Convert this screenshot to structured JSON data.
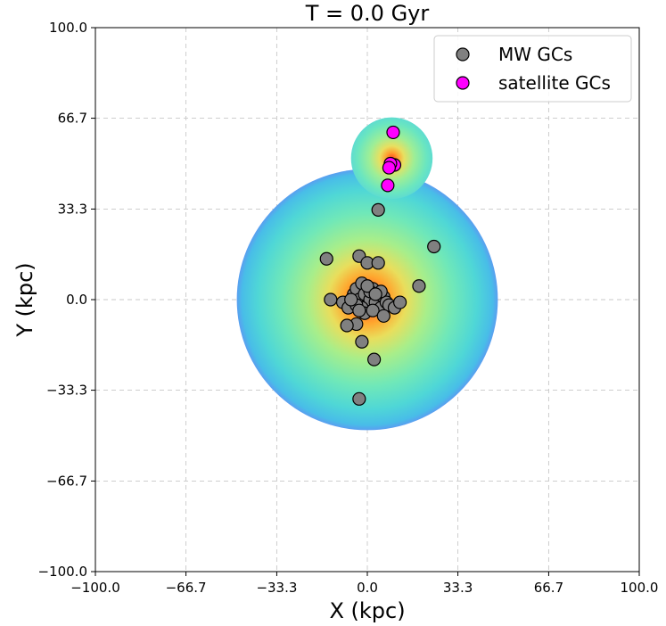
{
  "chart_data": {
    "type": "scatter",
    "title": "T = 0.0 Gyr",
    "xlabel": "X (kpc)",
    "ylabel": "Y (kpc)",
    "xlim": [
      -100,
      100
    ],
    "ylim": [
      -100,
      100
    ],
    "grid": true,
    "xticks": [
      -100,
      -66.7,
      -33.3,
      0,
      33.3,
      66.7,
      100
    ],
    "yticks": [
      -100,
      -66.7,
      -33.3,
      0,
      33.3,
      66.7,
      100
    ],
    "xtick_labels": [
      "−100.0",
      "−66.7",
      "−33.3",
      "0.0",
      "33.3",
      "66.7",
      "100.0"
    ],
    "ytick_labels": [
      "−100.0",
      "−66.7",
      "−33.3",
      "0.0",
      "33.3",
      "66.7",
      "100.0"
    ],
    "legend_position": "top-right",
    "density_halos": [
      {
        "name": "MW halo",
        "center": [
          0,
          0
        ],
        "radius_kpc": 48
      },
      {
        "name": "satellite halo",
        "center": [
          9,
          52
        ],
        "radius_kpc": 15
      }
    ],
    "series": [
      {
        "name": "MW GCs",
        "color": "#808080",
        "points": [
          [
            4,
            33
          ],
          [
            24.5,
            19.5
          ],
          [
            -15,
            15
          ],
          [
            -3,
            16
          ],
          [
            0,
            13.5
          ],
          [
            4,
            13.5
          ],
          [
            19,
            5
          ],
          [
            -13.5,
            0
          ],
          [
            -9,
            -1
          ],
          [
            -7,
            -3
          ],
          [
            -5,
            2
          ],
          [
            -4,
            4
          ],
          [
            -3,
            0
          ],
          [
            -2,
            6
          ],
          [
            -1,
            2
          ],
          [
            0,
            -2
          ],
          [
            1,
            0
          ],
          [
            2,
            4
          ],
          [
            3,
            -1
          ],
          [
            4,
            2
          ],
          [
            5,
            -3
          ],
          [
            6,
            1
          ],
          [
            7,
            -1
          ],
          [
            -2,
            -3
          ],
          [
            -4,
            -2
          ],
          [
            -1,
            -5
          ],
          [
            1,
            3
          ],
          [
            2,
            -4
          ],
          [
            5,
            3
          ],
          [
            8,
            -2
          ],
          [
            10,
            -3
          ],
          [
            12,
            -1
          ],
          [
            -6,
            0
          ],
          [
            -3,
            -4
          ],
          [
            6,
            -6
          ],
          [
            -4,
            -9
          ],
          [
            -7.5,
            -9.5
          ],
          [
            -2,
            -15.5
          ],
          [
            2.5,
            -22
          ],
          [
            -3,
            -36.5
          ],
          [
            0,
            5
          ],
          [
            3,
            2
          ]
        ]
      },
      {
        "name": "satellite GCs",
        "color": "#ff00ff",
        "points": [
          [
            9.5,
            61.5
          ],
          [
            10,
            49.5
          ],
          [
            8.5,
            50
          ],
          [
            8,
            48.5
          ],
          [
            7.5,
            42
          ]
        ]
      }
    ]
  }
}
